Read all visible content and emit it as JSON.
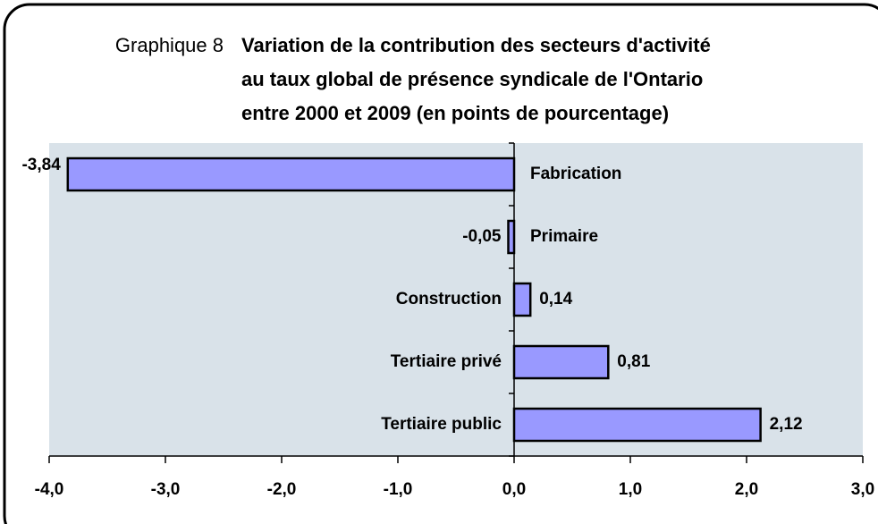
{
  "chart_data": {
    "type": "barh",
    "figure_label": "Graphique 8",
    "title": [
      "Variation de la contribution des secteurs d'activité",
      "au taux global de présence syndicale de l'Ontario",
      "entre 2000 et 2009 (en points de pourcentage)"
    ],
    "categories": [
      "Fabrication",
      "Primaire",
      "Construction",
      "Tertiaire privé",
      "Tertiaire public"
    ],
    "values": [
      -3.84,
      -0.05,
      0.14,
      0.81,
      2.12
    ],
    "value_labels": [
      "-3,84",
      "-0,05",
      "0,14",
      "0,81",
      "2,12"
    ],
    "color": "#9999ff",
    "plot_background": "#d9e2e9",
    "xlim": [
      -4,
      3
    ],
    "xticks": [
      {
        "value": -4,
        "label": "-4,0"
      },
      {
        "value": -3,
        "label": "-3,0"
      },
      {
        "value": -2,
        "label": "-2,0"
      },
      {
        "value": -1,
        "label": "-1,0"
      },
      {
        "value": 0,
        "label": "0,0"
      },
      {
        "value": 1,
        "label": "1,0"
      },
      {
        "value": 2,
        "label": "2,0"
      },
      {
        "value": 3,
        "label": "3,0"
      }
    ]
  }
}
